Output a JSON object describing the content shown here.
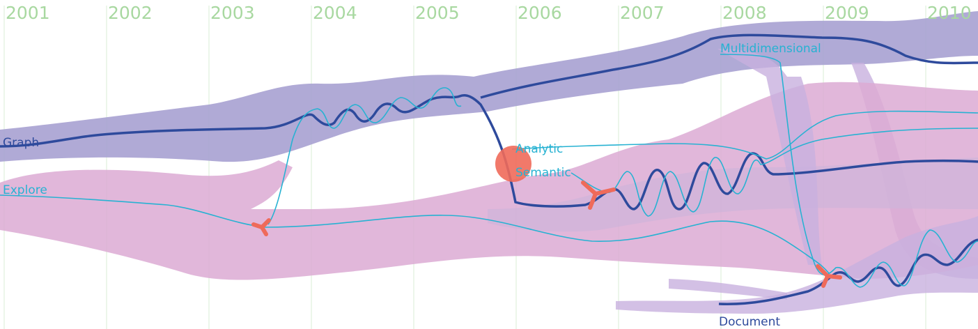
{
  "years": [
    "2001",
    "2002",
    "2003",
    "2004",
    "2005",
    "2006",
    "2007",
    "2008",
    "2009",
    "2010"
  ],
  "labels": {
    "graph": "Graph",
    "explore": "Explore",
    "analytic": "Analytic",
    "semantic": "Semantic",
    "multidimensional": "Multidimensional",
    "document": "Document"
  },
  "colors": {
    "year_text": "#a8d8a0",
    "year_grid": "#d9eed4",
    "band_blue": "#a9a3d3",
    "band_pink": "#dcaad3",
    "band_mauve": "#cfb4d9",
    "band_lilac": "#c8b0de",
    "topic_dark": "#2e4a9c",
    "topic_cyan": "#27b2d2",
    "event_marker": "#ef6a5a"
  }
}
